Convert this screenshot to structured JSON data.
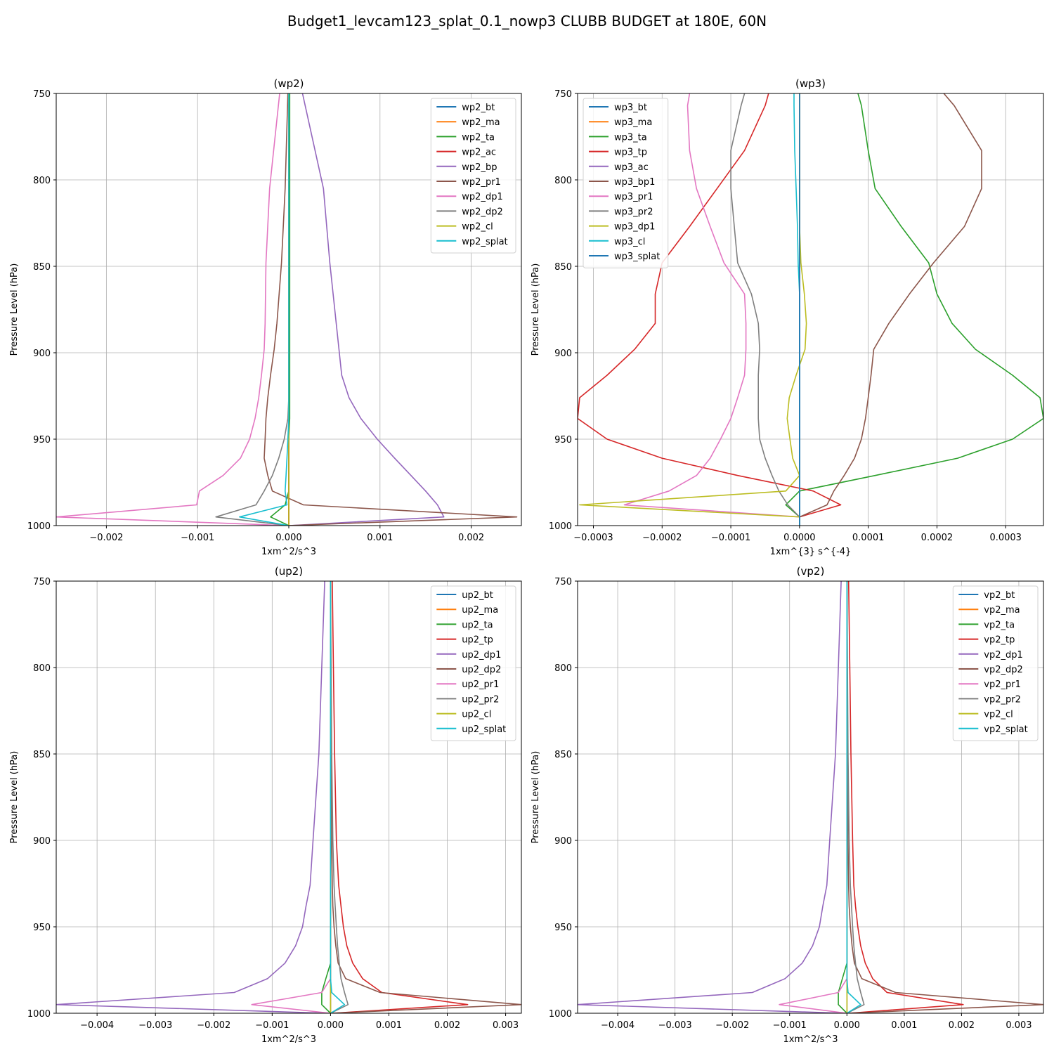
{
  "figure": {
    "suptitle": "Budget1_levcam123_splat_0.1_nowp3 CLUBB BUDGET at 180E, 60N"
  },
  "colors": {
    "palette": [
      "#1f77b4",
      "#ff7f0e",
      "#2ca02c",
      "#d62728",
      "#9467bd",
      "#8c564b",
      "#e377c2",
      "#7f7f7f",
      "#bcbd22",
      "#17becf"
    ],
    "grid": "#b0b0b0"
  },
  "chart_data": [
    {
      "type": "line",
      "title": "(wp2)",
      "xlabel": "1xm^2/s^3",
      "ylabel": "Pressure Level (hPa)",
      "xlim": [
        -0.00255,
        0.00255
      ],
      "ylim": [
        1000,
        750
      ],
      "y_inverted": true,
      "grid": true,
      "legend_position": "upper right",
      "xticks": [
        -0.002,
        -0.001,
        0.0,
        0.001,
        0.002
      ],
      "xtick_labels": [
        "−0.002",
        "−0.001",
        "0.000",
        "0.001",
        "0.002"
      ],
      "yticks": [
        750,
        800,
        850,
        900,
        950,
        1000
      ],
      "ytick_labels": [
        "750",
        "800",
        "850",
        "900",
        "950",
        "1000"
      ],
      "levels": [
        750,
        805,
        848,
        883,
        898,
        913,
        926,
        938,
        950,
        961,
        971,
        980,
        988,
        995,
        1000
      ],
      "series": [
        {
          "name": "wp2_bt",
          "x": [
            0,
            0,
            0,
            0,
            0,
            0,
            0,
            0,
            0,
            0,
            0,
            0,
            0,
            0,
            0
          ]
        },
        {
          "name": "wp2_ma",
          "x": [
            0,
            0,
            0,
            0,
            0,
            0,
            0,
            0,
            0,
            0,
            0,
            0,
            0,
            0,
            0
          ]
        },
        {
          "name": "wp2_ta",
          "x": [
            1e-05,
            1e-05,
            1e-05,
            1e-05,
            1e-05,
            1e-05,
            1e-05,
            1e-05,
            0,
            0,
            0,
            0,
            -4e-05,
            -0.0002,
            0
          ]
        },
        {
          "name": "wp2_ac",
          "x": [
            0,
            0,
            0,
            0,
            0,
            0,
            0,
            0,
            0,
            0,
            0,
            0,
            0,
            0,
            0
          ]
        },
        {
          "name": "wp2_bp",
          "x": [
            0.00015,
            0.00038,
            0.00045,
            0.00052,
            0.00055,
            0.00058,
            0.00066,
            0.00079,
            0.00097,
            0.00116,
            0.00134,
            0.0015,
            0.00163,
            0.0017,
            0
          ]
        },
        {
          "name": "wp2_pr1",
          "x": [
            -1e-05,
            -4e-05,
            -8e-05,
            -0.00013,
            -0.00016,
            -0.0002,
            -0.00023,
            -0.00025,
            -0.00026,
            -0.00027,
            -0.00023,
            -0.00018,
            0.00016,
            0.0025,
            -1e-05
          ]
        },
        {
          "name": "wp2_dp1",
          "x": [
            -0.0001,
            -0.00021,
            -0.00025,
            -0.00026,
            -0.00027,
            -0.0003,
            -0.00033,
            -0.00037,
            -0.00043,
            -0.00053,
            -0.00072,
            -0.00098,
            -0.00101,
            -0.00255,
            -1e-05
          ]
        },
        {
          "name": "wp2_dp2",
          "x": [
            0,
            0,
            0,
            0,
            0,
            0,
            0,
            -1e-05,
            -5e-05,
            -0.00011,
            -0.00018,
            -0.00027,
            -0.00036,
            -0.0008,
            0
          ]
        },
        {
          "name": "wp2_cl",
          "x": [
            0,
            0,
            0,
            0,
            0,
            0,
            0,
            0,
            0,
            0,
            0,
            0,
            0,
            0,
            0
          ]
        },
        {
          "name": "wp2_splat",
          "x": [
            0,
            0,
            0,
            0,
            0,
            0,
            0,
            0,
            -1e-05,
            -2e-05,
            -3e-05,
            -4e-05,
            -2e-05,
            -0.00054,
            0
          ]
        }
      ]
    },
    {
      "type": "line",
      "title": "(wp3)",
      "xlabel": "1xm^{3} s^{-4}",
      "ylabel": "Pressure Level (hPa)",
      "xlim": [
        -0.000323,
        0.000355
      ],
      "ylim": [
        1000,
        750
      ],
      "y_inverted": true,
      "grid": true,
      "legend_position": "upper left",
      "xticks": [
        -0.0003,
        -0.0002,
        -0.0001,
        0.0,
        0.0001,
        0.0002,
        0.0003
      ],
      "xtick_labels": [
        "−0.0003",
        "−0.0002",
        "−0.0001",
        "0.0000",
        "0.0001",
        "0.0002",
        "0.0003"
      ],
      "yticks": [
        750,
        800,
        850,
        900,
        950,
        1000
      ],
      "ytick_labels": [
        "750",
        "800",
        "850",
        "900",
        "950",
        "1000"
      ],
      "levels": [
        750,
        757,
        783,
        805,
        827,
        848,
        866,
        883,
        898,
        913,
        926,
        938,
        950,
        961,
        971,
        980,
        988,
        995,
        1000
      ],
      "series": [
        {
          "name": "wp3_bt",
          "x": [
            0,
            0,
            0,
            0,
            0,
            0,
            0,
            0,
            0,
            0,
            0,
            0,
            0,
            0,
            0,
            0,
            0,
            0,
            0
          ]
        },
        {
          "name": "wp3_ma",
          "x": [
            0,
            0,
            0,
            0,
            0,
            0,
            0,
            0,
            0,
            0,
            0,
            0,
            0,
            0,
            0,
            0,
            0,
            0,
            0
          ]
        },
        {
          "name": "wp3_ta",
          "x": [
            8.5e-05,
            9e-05,
            0.0001,
            0.00011,
            0.000148,
            0.000188,
            0.0002,
            0.000222,
            0.000256,
            0.00031,
            0.00035,
            0.000355,
            0.00031,
            0.00023,
            0.00011,
            0,
            -2e-05,
            0,
            0
          ]
        },
        {
          "name": "wp3_tp",
          "x": [
            -4.5e-05,
            -5e-05,
            -8e-05,
            -0.00012,
            -0.00016,
            -0.0002,
            -0.00021,
            -0.00021,
            -0.00024,
            -0.00028,
            -0.00032,
            -0.000323,
            -0.00028,
            -0.0002,
            -9e-05,
            2e-05,
            6e-05,
            0,
            0
          ]
        },
        {
          "name": "wp3_ac",
          "x": [
            0,
            0,
            0,
            0,
            0,
            0,
            0,
            0,
            0,
            0,
            0,
            0,
            0,
            0,
            0,
            0,
            0,
            0,
            0
          ]
        },
        {
          "name": "wp3_bp1",
          "x": [
            0.00021,
            0.000225,
            0.000265,
            0.000265,
            0.00024,
            0.000195,
            0.00016,
            0.00013,
            0.000108,
            0.000104,
            0.0001,
            9.6e-05,
            9e-05,
            8e-05,
            6.5e-05,
            5e-05,
            4e-05,
            0,
            0
          ]
        },
        {
          "name": "wp3_pr1",
          "x": [
            -0.00016,
            -0.000163,
            -0.00016,
            -0.00015,
            -0.00013,
            -0.00011,
            -8e-05,
            -7.8e-05,
            -7.8e-05,
            -8e-05,
            -9e-05,
            -0.0001,
            -0.000115,
            -0.00013,
            -0.00015,
            -0.00019,
            -0.000255,
            0,
            0
          ]
        },
        {
          "name": "wp3_pr2",
          "x": [
            -8e-05,
            -8.5e-05,
            -0.0001,
            -0.0001,
            -9.5e-05,
            -9e-05,
            -7e-05,
            -6e-05,
            -5.8e-05,
            -6e-05,
            -6e-05,
            -6e-05,
            -5.8e-05,
            -5e-05,
            -4e-05,
            -3e-05,
            -1.7e-05,
            0,
            0
          ]
        },
        {
          "name": "wp3_dp1",
          "x": [
            0,
            0,
            0,
            0,
            0,
            2e-06,
            7e-06,
            1e-05,
            8e-06,
            -5e-06,
            -1.5e-05,
            -1.8e-05,
            -1.4e-05,
            -1e-05,
            0,
            -2e-05,
            -0.00032,
            0,
            0
          ]
        },
        {
          "name": "wp3_cl",
          "x": [
            -8e-06,
            -8e-06,
            -7e-06,
            -5e-06,
            -3e-06,
            -2e-06,
            0,
            0,
            0,
            0,
            0,
            0,
            0,
            0,
            0,
            0,
            0,
            0,
            0
          ]
        },
        {
          "name": "wp3_splat",
          "x": [
            0,
            0,
            0,
            0,
            0,
            0,
            0,
            0,
            0,
            0,
            0,
            0,
            0,
            0,
            0,
            0,
            0,
            0,
            0
          ]
        }
      ]
    },
    {
      "type": "line",
      "title": "(up2)",
      "xlabel": "1xm^2/s^3",
      "ylabel": "Pressure Level (hPa)",
      "xlim": [
        -0.0047,
        0.00327
      ],
      "ylim": [
        1000,
        750
      ],
      "y_inverted": true,
      "grid": true,
      "legend_position": "upper right",
      "xticks": [
        -0.004,
        -0.003,
        -0.002,
        -0.001,
        0.0,
        0.001,
        0.002,
        0.003
      ],
      "xtick_labels": [
        "−0.004",
        "−0.003",
        "−0.002",
        "−0.001",
        "0.000",
        "0.001",
        "0.002",
        "0.003"
      ],
      "yticks": [
        750,
        800,
        850,
        900,
        950,
        1000
      ],
      "ytick_labels": [
        "750",
        "800",
        "850",
        "900",
        "950",
        "1000"
      ],
      "levels": [
        750,
        800,
        850,
        900,
        926,
        938,
        950,
        961,
        971,
        980,
        988,
        995,
        1000
      ],
      "series": [
        {
          "name": "up2_bt",
          "x": [
            0,
            0,
            0,
            0,
            0,
            0,
            0,
            0,
            0,
            0,
            0,
            0,
            0
          ]
        },
        {
          "name": "up2_ma",
          "x": [
            0,
            0,
            0,
            0,
            0,
            0,
            0,
            0,
            0,
            0,
            0,
            0,
            0
          ]
        },
        {
          "name": "up2_ta",
          "x": [
            0,
            0,
            0,
            0,
            0,
            0,
            0,
            0,
            0,
            -8e-05,
            -0.00015,
            -0.00015,
            0
          ]
        },
        {
          "name": "up2_tp",
          "x": [
            3e-05,
            5e-05,
            7e-05,
            0.0001,
            0.00014,
            0.00018,
            0.00022,
            0.00028,
            0.00038,
            0.00055,
            0.00088,
            0.00235,
            3e-05
          ]
        },
        {
          "name": "up2_dp1",
          "x": [
            -0.0001,
            -0.00015,
            -0.0002,
            -0.0003,
            -0.00035,
            -0.00042,
            -0.00048,
            -0.0006,
            -0.00078,
            -0.00108,
            -0.00165,
            -0.0047,
            -5e-05
          ]
        },
        {
          "name": "up2_dp2",
          "x": [
            0,
            0,
            1e-05,
            2e-05,
            3e-05,
            4e-05,
            6e-05,
            9e-05,
            0.00013,
            0.00026,
            0.00085,
            0.00327,
            1e-05
          ]
        },
        {
          "name": "up2_pr1",
          "x": [
            0,
            0,
            0,
            0,
            0,
            0,
            0,
            0,
            0,
            0,
            -0.00015,
            -0.00135,
            0
          ]
        },
        {
          "name": "up2_pr2",
          "x": [
            0,
            1e-05,
            2e-05,
            4e-05,
            6e-05,
            8e-05,
            0.0001,
            0.00012,
            0.00015,
            0.00018,
            0.00024,
            0.0003,
            0
          ]
        },
        {
          "name": "up2_cl",
          "x": [
            0,
            0,
            0,
            0,
            0,
            0,
            0,
            0,
            0,
            0,
            0,
            0,
            0
          ]
        },
        {
          "name": "up2_splat",
          "x": [
            0,
            0,
            0,
            0,
            0,
            0,
            0,
            0,
            0,
            0,
            2e-05,
            0.00024,
            0
          ]
        }
      ]
    },
    {
      "type": "line",
      "title": "(vp2)",
      "xlabel": "1xm^2/s^3",
      "ylabel": "Pressure Level (hPa)",
      "xlim": [
        -0.0047,
        0.00343
      ],
      "ylim": [
        1000,
        750
      ],
      "y_inverted": true,
      "grid": true,
      "legend_position": "upper right",
      "xticks": [
        -0.004,
        -0.003,
        -0.002,
        -0.001,
        0.0,
        0.001,
        0.002,
        0.003
      ],
      "xtick_labels": [
        "−0.004",
        "−0.003",
        "−0.002",
        "−0.001",
        "0.000",
        "0.001",
        "0.002",
        "0.003"
      ],
      "yticks": [
        750,
        800,
        850,
        900,
        950,
        1000
      ],
      "ytick_labels": [
        "750",
        "800",
        "850",
        "900",
        "950",
        "1000"
      ],
      "levels": [
        750,
        800,
        850,
        900,
        926,
        938,
        950,
        961,
        971,
        980,
        988,
        995,
        1000
      ],
      "series": [
        {
          "name": "vp2_bt",
          "x": [
            0,
            0,
            0,
            0,
            0,
            0,
            0,
            0,
            0,
            0,
            0,
            0,
            0
          ]
        },
        {
          "name": "vp2_ma",
          "x": [
            0,
            0,
            0,
            0,
            0,
            0,
            0,
            0,
            0,
            0,
            0,
            0,
            0
          ]
        },
        {
          "name": "vp2_ta",
          "x": [
            0,
            0,
            0,
            0,
            0,
            0,
            0,
            0,
            0,
            -8e-05,
            -0.00015,
            -0.00015,
            0
          ]
        },
        {
          "name": "vp2_tp",
          "x": [
            3e-05,
            5e-05,
            7e-05,
            0.0001,
            0.00012,
            0.00015,
            0.00019,
            0.00024,
            0.00032,
            0.00045,
            0.0007,
            0.00203,
            3e-05
          ]
        },
        {
          "name": "vp2_dp1",
          "x": [
            -0.0001,
            -0.00015,
            -0.0002,
            -0.0003,
            -0.00035,
            -0.00042,
            -0.00048,
            -0.0006,
            -0.00078,
            -0.00108,
            -0.00165,
            -0.0047,
            -5e-05
          ]
        },
        {
          "name": "vp2_dp2",
          "x": [
            0,
            0,
            1e-05,
            2e-05,
            3e-05,
            4e-05,
            6e-05,
            9e-05,
            0.00013,
            0.00026,
            0.00085,
            0.00343,
            1e-05
          ]
        },
        {
          "name": "vp2_pr1",
          "x": [
            0,
            0,
            0,
            0,
            0,
            0,
            0,
            0,
            0,
            0,
            -0.00015,
            -0.00118,
            0
          ]
        },
        {
          "name": "vp2_pr2",
          "x": [
            0,
            1e-05,
            2e-05,
            4e-05,
            6e-05,
            8e-05,
            0.0001,
            0.00012,
            0.00015,
            0.00018,
            0.00024,
            0.0003,
            0
          ]
        },
        {
          "name": "vp2_cl",
          "x": [
            0,
            0,
            0,
            0,
            0,
            0,
            0,
            0,
            0,
            0,
            0,
            0,
            0
          ]
        },
        {
          "name": "vp2_splat",
          "x": [
            0,
            0,
            0,
            0,
            0,
            0,
            0,
            0,
            0,
            0,
            2e-05,
            0.00024,
            0
          ]
        }
      ]
    }
  ]
}
